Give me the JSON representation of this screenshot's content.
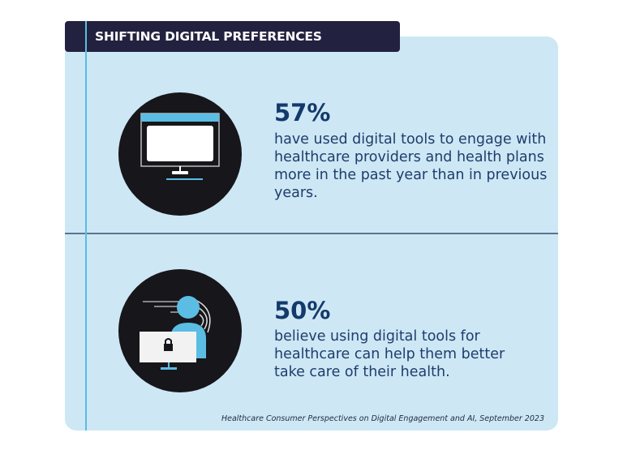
{
  "header": {
    "title": "SHIFTING DIGITAL PREFERENCES"
  },
  "stats": [
    {
      "value": "57%",
      "text": "have used digital tools to engage with healthcare providers and health plans more in the past year than in previous years.",
      "icon": "computer-monitor-icon"
    },
    {
      "value": "50%",
      "text": "believe using digital tools for healthcare can help them better take care of their health.",
      "icon": "secure-user-computer-icon"
    }
  ],
  "source": "Healthcare Consumer Perspectives on Digital Engagement and AI, September 2023",
  "colors": {
    "panel": "#cde7f5",
    "header": "#22213f",
    "accent": "#5bbde4",
    "text": "#143a6b"
  }
}
